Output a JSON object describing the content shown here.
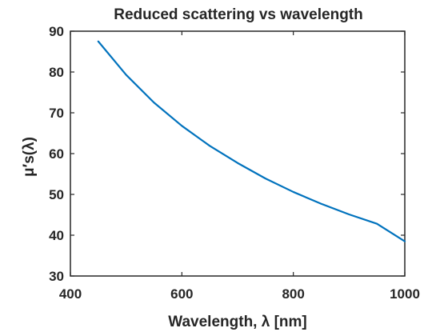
{
  "chart_data": {
    "type": "line",
    "title": "Reduced scattering vs wavelength",
    "xlabel": "Wavelength, λ [nm]",
    "ylabel": "μ′s(λ)",
    "xlim": [
      400,
      1000
    ],
    "ylim": [
      30,
      90
    ],
    "xticks": [
      "400",
      "600",
      "800",
      "1000"
    ],
    "yticks": [
      "30",
      "40",
      "50",
      "60",
      "70",
      "80",
      "90"
    ],
    "grid": false,
    "line_color": "#0072BD",
    "series": [
      {
        "x": [
          450,
          500,
          550,
          600,
          650,
          700,
          750,
          800,
          850,
          900,
          950,
          1000
        ],
        "y": [
          87.5,
          79.3,
          72.5,
          66.8,
          61.9,
          57.7,
          53.9,
          50.6,
          47.7,
          45.1,
          42.8,
          38.5
        ]
      }
    ]
  }
}
